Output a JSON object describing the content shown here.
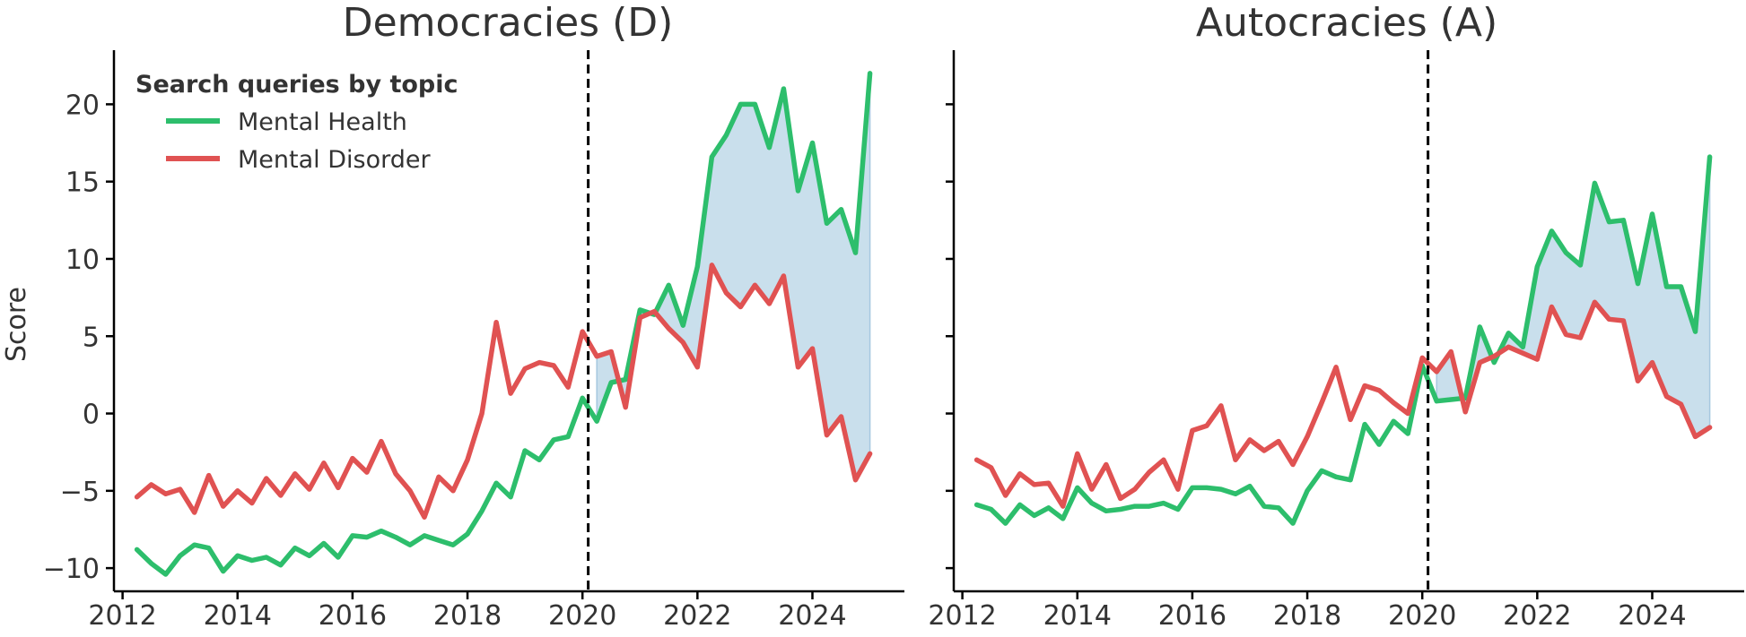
{
  "chart_data": {
    "type": "line",
    "ylabel": "Score",
    "legend": {
      "title": "Search queries by topic",
      "entries": [
        "Mental Health",
        "Mental Disorder"
      ],
      "placement": "top-left"
    },
    "colors": {
      "health": "#2dbe6c",
      "disorder": "#e05252",
      "fill": "#c9dfec",
      "fill_edge": "#a6c8e0",
      "axis": "#000000",
      "text": "#333333"
    },
    "xlim": [
      2011.85,
      2025.6
    ],
    "ylim": [
      -11.5,
      23.5
    ],
    "xticks": [
      2012,
      2014,
      2016,
      2018,
      2020,
      2022,
      2024
    ],
    "xtick_labels": [
      "2012",
      "2014",
      "2016",
      "2018",
      "2020",
      "2022",
      "2024"
    ],
    "yticks": [
      -10,
      -5,
      0,
      5,
      10,
      15,
      20
    ],
    "ytick_labels": [
      "−10",
      "−5",
      "0",
      "5",
      "10",
      "15",
      "20"
    ],
    "vline_x": 2020.1,
    "panels": [
      {
        "title": "Democracies (D)",
        "series": [
          {
            "name": "Mental Health",
            "x": [
              2012.25,
              2012.5,
              2012.75,
              2013,
              2013.25,
              2013.5,
              2013.75,
              2014,
              2014.25,
              2014.5,
              2014.75,
              2015,
              2015.25,
              2015.5,
              2015.75,
              2016,
              2016.25,
              2016.5,
              2016.75,
              2017,
              2017.25,
              2017.5,
              2017.75,
              2018,
              2018.25,
              2018.5,
              2018.75,
              2019,
              2019.25,
              2019.5,
              2019.75,
              2020,
              2020.25,
              2020.5,
              2020.75,
              2021,
              2021.25,
              2021.5,
              2021.75,
              2022,
              2022.25,
              2022.5,
              2022.75,
              2023,
              2023.25,
              2023.5,
              2023.75,
              2024,
              2024.25,
              2024.5,
              2024.75,
              2025
            ],
            "values": [
              -8.8,
              -9.7,
              -10.4,
              -9.2,
              -8.5,
              -8.7,
              -10.2,
              -9.2,
              -9.5,
              -9.3,
              -9.8,
              -8.7,
              -9.2,
              -8.4,
              -9.3,
              -7.9,
              -8.0,
              -7.6,
              -8.0,
              -8.5,
              -7.9,
              -8.2,
              -8.5,
              -7.8,
              -6.3,
              -4.5,
              -5.4,
              -2.4,
              -3.0,
              -1.7,
              -1.5,
              1.0,
              -0.5,
              2.0,
              2.2,
              6.7,
              6.4,
              8.3,
              5.7,
              9.5,
              16.6,
              18.0,
              20.0,
              20.0,
              17.2,
              21.0,
              14.4,
              17.5,
              12.3,
              13.2,
              10.4,
              22.0
            ]
          },
          {
            "name": "Mental Disorder",
            "x": [
              2012.25,
              2012.5,
              2012.75,
              2013,
              2013.25,
              2013.5,
              2013.75,
              2014,
              2014.25,
              2014.5,
              2014.75,
              2015,
              2015.25,
              2015.5,
              2015.75,
              2016,
              2016.25,
              2016.5,
              2016.75,
              2017,
              2017.25,
              2017.5,
              2017.75,
              2018,
              2018.25,
              2018.5,
              2018.75,
              2019,
              2019.25,
              2019.5,
              2019.75,
              2020,
              2020.25,
              2020.5,
              2020.75,
              2021,
              2021.25,
              2021.5,
              2021.75,
              2022,
              2022.25,
              2022.5,
              2022.75,
              2023,
              2023.25,
              2023.5,
              2023.75,
              2024,
              2024.25,
              2024.5,
              2024.75,
              2025
            ],
            "values": [
              -5.4,
              -4.6,
              -5.2,
              -4.9,
              -6.4,
              -4.0,
              -6.0,
              -5.0,
              -5.8,
              -4.2,
              -5.3,
              -3.9,
              -4.9,
              -3.2,
              -4.8,
              -2.9,
              -3.8,
              -1.8,
              -3.9,
              -5.0,
              -6.7,
              -4.1,
              -5.0,
              -3.0,
              0.0,
              5.9,
              1.3,
              2.9,
              3.3,
              3.1,
              1.7,
              5.3,
              3.7,
              4.0,
              0.4,
              6.2,
              6.6,
              5.5,
              4.6,
              3.0,
              9.6,
              7.8,
              6.9,
              8.3,
              7.1,
              8.9,
              3.0,
              4.2,
              -1.4,
              -0.2,
              -4.3,
              -2.6
            ]
          }
        ]
      },
      {
        "title": "Autocracies (A)",
        "series": [
          {
            "name": "Mental Health",
            "x": [
              2012.25,
              2012.5,
              2012.75,
              2013,
              2013.25,
              2013.5,
              2013.75,
              2014,
              2014.25,
              2014.5,
              2014.75,
              2015,
              2015.25,
              2015.5,
              2015.75,
              2016,
              2016.25,
              2016.5,
              2016.75,
              2017,
              2017.25,
              2017.5,
              2017.75,
              2018,
              2018.25,
              2018.5,
              2018.75,
              2019,
              2019.25,
              2019.5,
              2019.75,
              2020,
              2020.25,
              2020.5,
              2020.75,
              2021,
              2021.25,
              2021.5,
              2021.75,
              2022,
              2022.25,
              2022.5,
              2022.75,
              2023,
              2023.25,
              2023.5,
              2023.75,
              2024,
              2024.25,
              2024.5,
              2024.75,
              2025
            ],
            "values": [
              -5.9,
              -6.2,
              -7.1,
              -5.9,
              -6.6,
              -6.1,
              -6.8,
              -4.8,
              -5.8,
              -6.3,
              -6.2,
              -6.0,
              -6.0,
              -5.8,
              -6.2,
              -4.8,
              -4.8,
              -4.9,
              -5.2,
              -4.7,
              -6.0,
              -6.1,
              -7.1,
              -5.0,
              -3.7,
              -4.1,
              -4.3,
              -0.7,
              -2.0,
              -0.5,
              -1.3,
              3.1,
              0.8,
              0.9,
              1.0,
              5.6,
              3.3,
              5.2,
              4.3,
              9.5,
              11.8,
              10.4,
              9.6,
              14.9,
              12.4,
              12.5,
              8.4,
              12.9,
              8.2,
              8.2,
              5.3,
              16.6
            ]
          },
          {
            "name": "Mental Disorder",
            "x": [
              2012.25,
              2012.5,
              2012.75,
              2013,
              2013.25,
              2013.5,
              2013.75,
              2014,
              2014.25,
              2014.5,
              2014.75,
              2015,
              2015.25,
              2015.5,
              2015.75,
              2016,
              2016.25,
              2016.5,
              2016.75,
              2017,
              2017.25,
              2017.5,
              2017.75,
              2018,
              2018.25,
              2018.5,
              2018.75,
              2019,
              2019.25,
              2019.5,
              2019.75,
              2020,
              2020.25,
              2020.5,
              2020.75,
              2021,
              2021.25,
              2021.5,
              2021.75,
              2022,
              2022.25,
              2022.5,
              2022.75,
              2023,
              2023.25,
              2023.5,
              2023.75,
              2024,
              2024.25,
              2024.5,
              2024.75,
              2025
            ],
            "values": [
              -3.0,
              -3.5,
              -5.3,
              -3.9,
              -4.6,
              -4.5,
              -6.0,
              -2.6,
              -4.9,
              -3.3,
              -5.5,
              -4.9,
              -3.8,
              -3.0,
              -4.9,
              -1.1,
              -0.8,
              0.5,
              -3.0,
              -1.7,
              -2.4,
              -1.8,
              -3.3,
              -1.5,
              0.7,
              3.0,
              -0.4,
              1.8,
              1.5,
              0.7,
              0.0,
              3.6,
              2.7,
              4.0,
              0.1,
              3.3,
              3.7,
              4.3,
              3.9,
              3.5,
              6.9,
              5.1,
              4.9,
              7.2,
              6.1,
              6.0,
              2.1,
              3.3,
              1.1,
              0.6,
              -1.5,
              -0.9
            ]
          }
        ]
      }
    ]
  }
}
